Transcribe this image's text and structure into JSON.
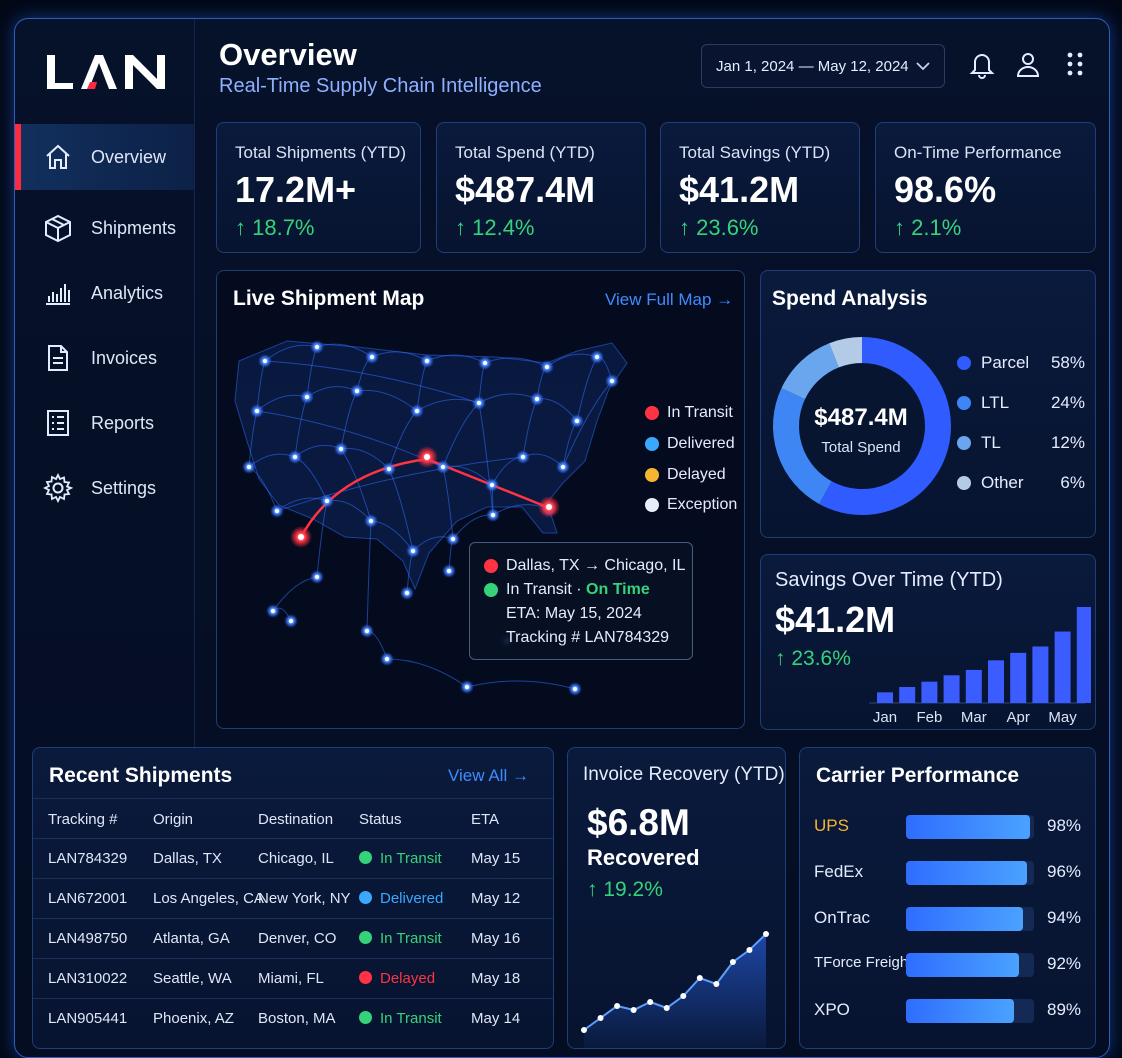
{
  "brand": {
    "logo_text": "LAN"
  },
  "nav": [
    {
      "label": "Overview",
      "icon": "home-icon",
      "active": true
    },
    {
      "label": "Shipments",
      "icon": "box-icon"
    },
    {
      "label": "Analytics",
      "icon": "bar-chart-icon"
    },
    {
      "label": "Invoices",
      "icon": "document-icon"
    },
    {
      "label": "Reports",
      "icon": "report-icon"
    },
    {
      "label": "Settings",
      "icon": "gear-icon"
    }
  ],
  "header": {
    "title": "Overview",
    "subtitle": "Real-Time Supply Chain Intelligence",
    "date_range": "Jan 1, 2024 — May 12, 2024"
  },
  "kpis": [
    {
      "label": "Total Shipments (YTD)",
      "value": "17.2M+",
      "delta": "↑ 18.7%"
    },
    {
      "label": "Total Spend (YTD)",
      "value": "$487.4M",
      "delta": "↑ 12.4%"
    },
    {
      "label": "Total Savings (YTD)",
      "value": "$41.2M",
      "delta": "↑ 23.6%"
    },
    {
      "label": "On-Time Performance",
      "value": "98.6%",
      "delta": "↑ 2.1%"
    }
  ],
  "map": {
    "title": "Live Shipment Map",
    "link": "View Full Map",
    "legend": [
      {
        "label": "In Transit",
        "color": "#ff3344"
      },
      {
        "label": "Delivered",
        "color": "#3aa8ff"
      },
      {
        "label": "Delayed",
        "color": "#f5b531"
      },
      {
        "label": "Exception",
        "color": "#e8eef9"
      }
    ],
    "tooltip": {
      "route": "Dallas, TX → Chicago, IL",
      "status": "In Transit · ",
      "status_note": "On Time",
      "eta": "ETA: May 15, 2024",
      "tracking": "Tracking # LAN784329"
    }
  },
  "spend": {
    "title": "Spend Analysis",
    "center_value": "$487.4M",
    "center_label": "Total Spend",
    "chart_data": {
      "type": "pie",
      "categories": [
        "Parcel",
        "LTL",
        "TL",
        "Other"
      ],
      "values": [
        58,
        24,
        12,
        6
      ],
      "colors": [
        "#2f5bff",
        "#3f86f5",
        "#6aa6ee",
        "#b4cbe8"
      ]
    },
    "legend": [
      {
        "label": "Parcel",
        "pct": "58%"
      },
      {
        "label": "LTL",
        "pct": "24%"
      },
      {
        "label": "TL",
        "pct": "12%"
      },
      {
        "label": "Other",
        "pct": "6%"
      }
    ]
  },
  "savings": {
    "title": "Savings Over Time (YTD)",
    "value": "$41.2M",
    "delta": "↑ 23.6%",
    "chart_data": {
      "type": "bar",
      "categories": [
        "Jan",
        "",
        "Feb",
        "",
        "Mar",
        "",
        "Apr",
        "",
        "May",
        ""
      ],
      "values": [
        1.0,
        1.5,
        2.0,
        2.6,
        3.1,
        4.0,
        4.7,
        5.3,
        6.7,
        9.0
      ]
    }
  },
  "recent": {
    "title": "Recent Shipments",
    "link": "View All",
    "columns": [
      "Tracking #",
      "Origin",
      "Destination",
      "Status",
      "ETA"
    ],
    "rows": [
      {
        "tracking": "LAN784329",
        "origin": "Dallas, TX",
        "destination": "Chicago, IL",
        "status": "In Transit",
        "status_color": "#35d27a",
        "eta": "May 15"
      },
      {
        "tracking": "LAN672001",
        "origin": "Los Angeles, CA",
        "destination": "New York, NY",
        "status": "Delivered",
        "status_color": "#3aa8ff",
        "eta": "May 12"
      },
      {
        "tracking": "LAN498750",
        "origin": "Atlanta, GA",
        "destination": "Denver, CO",
        "status": "In Transit",
        "status_color": "#35d27a",
        "eta": "May 16"
      },
      {
        "tracking": "LAN310022",
        "origin": "Seattle, WA",
        "destination": "Miami, FL",
        "status": "Delayed",
        "status_color": "#ff3344",
        "eta": "May 18"
      },
      {
        "tracking": "LAN905441",
        "origin": "Phoenix, AZ",
        "destination": "Boston, MA",
        "status": "In Transit",
        "status_color": "#35d27a",
        "eta": "May 14"
      }
    ]
  },
  "invoice": {
    "title": "Invoice Recovery (YTD)",
    "value": "$6.8M",
    "sub": "Recovered",
    "delta": "↑ 19.2%",
    "chart_data": {
      "type": "area",
      "values": [
        1.0,
        1.6,
        2.2,
        2.0,
        2.4,
        2.1,
        2.7,
        3.6,
        3.3,
        4.4,
        5.0,
        5.8
      ]
    }
  },
  "carriers": {
    "title": "Carrier Performance",
    "chart_data": {
      "type": "bar",
      "categories": [
        "UPS",
        "FedEx",
        "OnTrac",
        "TForce Freight",
        "XPO"
      ],
      "values": [
        98,
        96,
        94,
        92,
        89
      ]
    },
    "items": [
      {
        "name": "UPS",
        "pct": "98%",
        "highlight": true
      },
      {
        "name": "FedEx",
        "pct": "96%"
      },
      {
        "name": "OnTrac",
        "pct": "94%"
      },
      {
        "name": "TForce Freight",
        "pct": "92%"
      },
      {
        "name": "XPO",
        "pct": "89%"
      }
    ]
  }
}
